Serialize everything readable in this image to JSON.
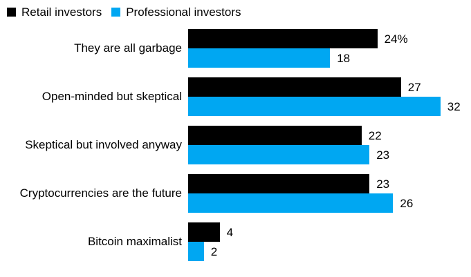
{
  "chart_data": {
    "type": "bar",
    "orientation": "horizontal",
    "title": "",
    "categories": [
      "They are all garbage",
      "Open-minded but skeptical",
      "Skeptical but involved anyway",
      "Cryptocurrencies are the future",
      "Bitcoin maximalist"
    ],
    "series": [
      {
        "name": "Retail investors",
        "color": "#000000",
        "values": [
          24,
          27,
          22,
          23,
          4
        ],
        "labels": [
          "24%",
          "27",
          "22",
          "23",
          "4"
        ]
      },
      {
        "name": "Professional investors",
        "color": "#00A7F2",
        "values": [
          18,
          32,
          23,
          26,
          2
        ],
        "labels": [
          "18",
          "32",
          "23",
          "26",
          "2"
        ]
      }
    ],
    "unit": "percent",
    "xlim": [
      0,
      32
    ],
    "grid": false,
    "legend_position": "top-left",
    "value_labels": "outside-end"
  }
}
